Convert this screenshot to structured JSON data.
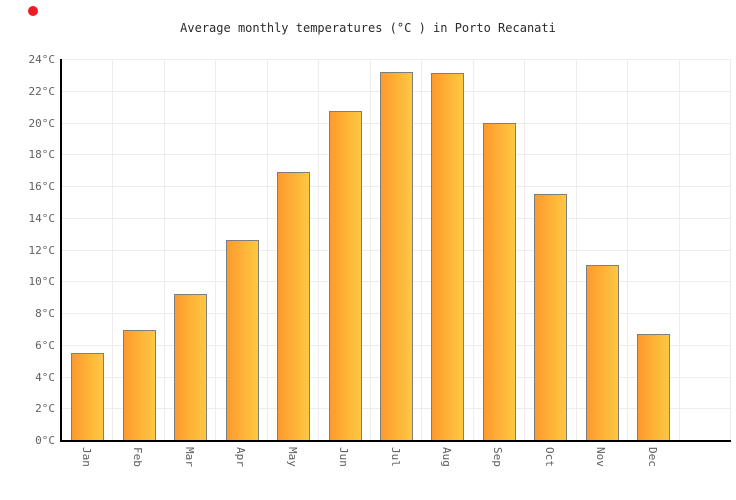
{
  "chart_data": {
    "type": "bar",
    "title": "Average monthly temperatures (°C ) in Porto Recanati",
    "categories": [
      "Jan",
      "Feb",
      "Mar",
      "Apr",
      "May",
      "Jun",
      "Jul",
      "Aug",
      "Sep",
      "Oct",
      "Nov",
      "Dec"
    ],
    "values": [
      5.5,
      6.9,
      9.2,
      12.6,
      16.9,
      20.7,
      23.2,
      23.1,
      20.0,
      15.5,
      11.0,
      6.7
    ],
    "unit": "°C",
    "xlabel": "",
    "ylabel": "",
    "ylim": [
      0,
      24
    ],
    "ytick_step": 2,
    "ytick_suffix": "°C",
    "grid": true,
    "legend": false,
    "empty_trailing_columns": 1,
    "colors": {
      "bar_gradient_left": "#fd9a2d",
      "bar_gradient_right": "#ffc841",
      "bar_border": "#7e7e7e",
      "axis": "#000000",
      "gridline": "#ededed",
      "tick_label": "#5f5f5f",
      "title": "#2b2b2b",
      "background": "#ffffff",
      "red_dot": "#ed1c24"
    }
  }
}
